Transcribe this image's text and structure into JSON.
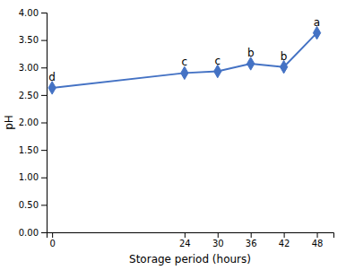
{
  "chart_data": {
    "type": "line",
    "x": [
      0,
      24,
      30,
      36,
      42,
      48
    ],
    "values": [
      2.63,
      2.9,
      2.93,
      3.07,
      3.01,
      3.63
    ],
    "color": "#4472C4",
    "marker": "diamond",
    "xlabel": "Storage period (hours)",
    "ylabel": "pH",
    "xlim": [
      -1,
      51
    ],
    "ylim": [
      0.0,
      4.0
    ],
    "xticks": [
      0,
      24,
      30,
      36,
      42,
      48
    ],
    "yticks": [
      {
        "value": 0.0,
        "label": "0.00"
      },
      {
        "value": 0.5,
        "label": "0.50"
      },
      {
        "value": 1.0,
        "label": "1.00"
      },
      {
        "value": 1.5,
        "label": "1.50"
      },
      {
        "value": 2.0,
        "label": "2.00"
      },
      {
        "value": 2.5,
        "label": "2.50"
      },
      {
        "value": 3.0,
        "label": "3.00"
      },
      {
        "value": 3.5,
        "label": "3.50"
      },
      {
        "value": 4.0,
        "label": "4.00"
      }
    ],
    "annotations": [
      {
        "text": "d",
        "x": 0,
        "y": 2.63
      },
      {
        "text": "c",
        "x": 24,
        "y": 2.9
      },
      {
        "text": "c",
        "x": 30,
        "y": 2.93
      },
      {
        "text": "b",
        "x": 36,
        "y": 3.07
      },
      {
        "text": "b",
        "x": 42,
        "y": 3.01
      },
      {
        "text": "a",
        "x": 48,
        "y": 3.63
      }
    ]
  }
}
